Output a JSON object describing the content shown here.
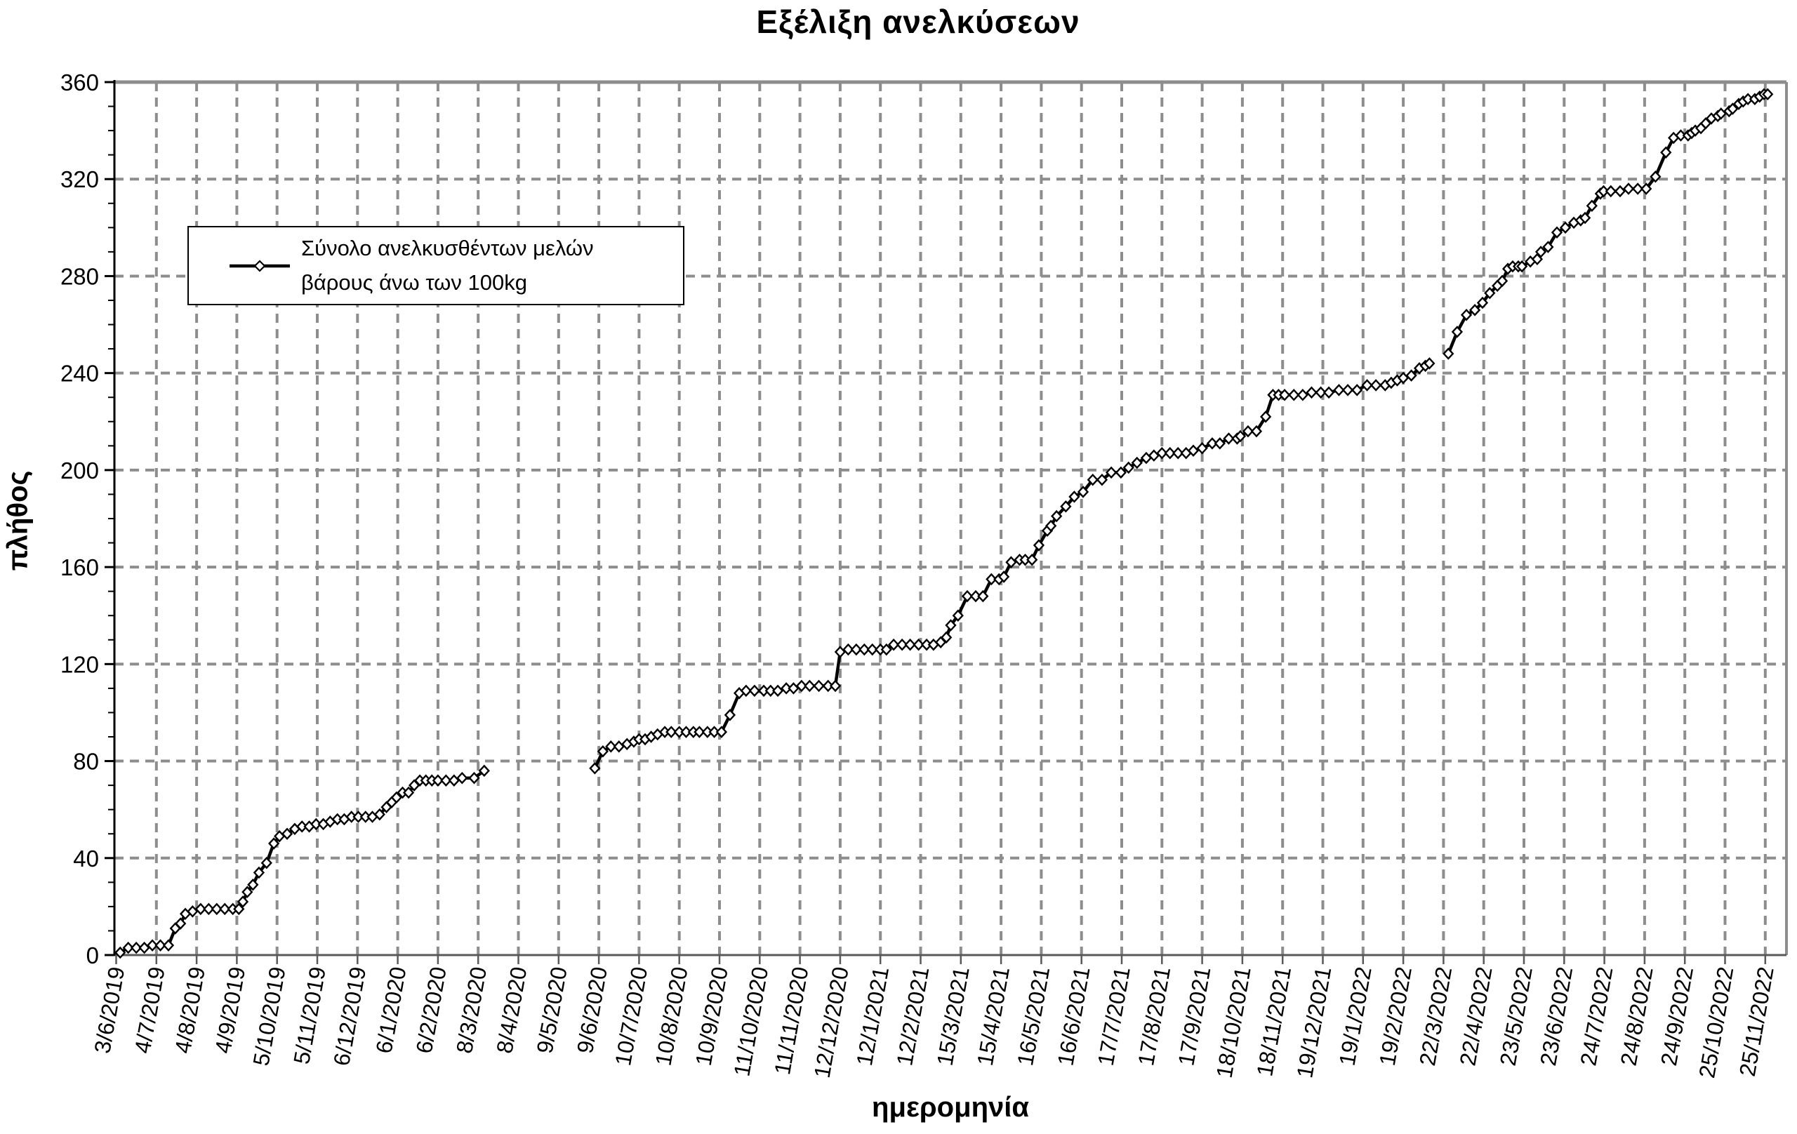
{
  "chart": {
    "title": "Εξέλιξη ανελκύσεων",
    "xlabel": "ημερομηνία",
    "ylabel": "πλήθος",
    "legend": {
      "line1": "Σύνολο ανελκυσθέντων μελών",
      "line2": "βάρους άνω των 100kg"
    }
  },
  "chart_data": {
    "type": "line",
    "title": "Εξέλιξη ανελκύσεων",
    "xlabel": "ημερομηνία",
    "ylabel": "πλήθος",
    "legend_entries": [
      "Σύνολο ανελκυσθέντων μελών βάρους άνω των 100kg"
    ],
    "ylim": [
      0,
      360
    ],
    "y_major_step": 40,
    "y_minor_step": 10,
    "y_tick_labels": [
      "0",
      "40",
      "80",
      "120",
      "160",
      "200",
      "240",
      "280",
      "320",
      "360"
    ],
    "grid": "dashed gray, both directions, on at every tick",
    "legend_position": "upper-left inside plot",
    "marker": "open-diamond",
    "colors": {
      "line": "#000000",
      "grid": "#8d8d8d",
      "axis": "#595959",
      "text": "#000000",
      "background": "#ffffff"
    },
    "x_unit": "fractional index into x_tick_labels (one tick per month)",
    "x_tick_labels": [
      "3/6/2019",
      "4/7/2019",
      "4/8/2019",
      "4/9/2019",
      "5/10/2019",
      "5/11/2019",
      "6/12/2019",
      "6/1/2020",
      "6/2/2020",
      "8/3/2020",
      "8/4/2020",
      "9/5/2020",
      "9/6/2020",
      "10/7/2020",
      "10/8/2020",
      "10/9/2020",
      "11/10/2020",
      "11/11/2020",
      "12/12/2020",
      "12/1/2021",
      "12/2/2021",
      "15/3/2021",
      "15/4/2021",
      "16/5/2021",
      "16/6/2021",
      "17/7/2021",
      "17/8/2021",
      "17/9/2021",
      "18/10/2021",
      "18/11/2021",
      "19/12/2021",
      "19/1/2022",
      "19/2/2022",
      "22/3/2022",
      "22/4/2022",
      "23/5/2022",
      "23/6/2022",
      "24/7/2022",
      "24/8/2022",
      "24/9/2022",
      "25/10/2022",
      "25/11/2022"
    ],
    "series": [
      {
        "name": "Σύνολο ανελκυσθέντων μελών βάρους άνω των 100kg",
        "segments": [
          [
            [
              0.1,
              1
            ],
            [
              0.3,
              3
            ],
            [
              0.5,
              3
            ],
            [
              0.7,
              3
            ],
            [
              0.9,
              4
            ],
            [
              1.1,
              4
            ],
            [
              1.3,
              4
            ],
            [
              1.47,
              11
            ],
            [
              1.6,
              13
            ],
            [
              1.72,
              17
            ],
            [
              1.9,
              18
            ],
            [
              2.1,
              19
            ],
            [
              2.3,
              19
            ],
            [
              2.5,
              19
            ],
            [
              2.7,
              19
            ],
            [
              2.9,
              19
            ],
            [
              3.05,
              19
            ],
            [
              3.15,
              22
            ],
            [
              3.26,
              26
            ],
            [
              3.4,
              29
            ],
            [
              3.55,
              34
            ],
            [
              3.74,
              38
            ],
            [
              3.92,
              46
            ],
            [
              4.06,
              49
            ],
            [
              4.25,
              50
            ],
            [
              4.44,
              52
            ],
            [
              4.62,
              53
            ],
            [
              4.8,
              53
            ],
            [
              4.97,
              54
            ],
            [
              5.15,
              54
            ],
            [
              5.32,
              55
            ],
            [
              5.5,
              56
            ],
            [
              5.67,
              56
            ],
            [
              5.85,
              57
            ],
            [
              6.02,
              57
            ],
            [
              6.2,
              57
            ],
            [
              6.37,
              57
            ],
            [
              6.55,
              58
            ],
            [
              6.72,
              61
            ],
            [
              6.85,
              63
            ],
            [
              6.97,
              65
            ],
            [
              7.12,
              67
            ],
            [
              7.27,
              67
            ],
            [
              7.41,
              70
            ],
            [
              7.55,
              72
            ],
            [
              7.7,
              72
            ],
            [
              7.85,
              72
            ],
            [
              8.0,
              72
            ],
            [
              8.2,
              72
            ],
            [
              8.4,
              72
            ],
            [
              8.6,
              73
            ],
            [
              8.9,
              73
            ],
            [
              9.15,
              76
            ]
          ],
          [
            [
              11.9,
              77
            ],
            [
              12.1,
              84
            ],
            [
              12.3,
              86
            ],
            [
              12.5,
              86
            ],
            [
              12.7,
              87
            ],
            [
              12.87,
              88
            ],
            [
              13.0,
              89
            ],
            [
              13.15,
              89
            ],
            [
              13.3,
              90
            ],
            [
              13.46,
              91
            ],
            [
              13.64,
              92
            ],
            [
              13.8,
              92
            ],
            [
              14.0,
              92
            ],
            [
              14.17,
              92
            ],
            [
              14.35,
              92
            ],
            [
              14.5,
              92
            ],
            [
              14.7,
              92
            ],
            [
              14.87,
              92
            ],
            [
              15.05,
              92
            ],
            [
              15.26,
              99
            ],
            [
              15.49,
              108
            ],
            [
              15.66,
              109
            ],
            [
              15.87,
              109
            ],
            [
              16.1,
              109
            ],
            [
              16.27,
              109
            ],
            [
              16.45,
              109
            ],
            [
              16.66,
              110
            ],
            [
              16.84,
              110
            ],
            [
              17.04,
              111
            ],
            [
              17.24,
              111
            ],
            [
              17.47,
              111
            ],
            [
              17.7,
              111
            ],
            [
              17.88,
              111
            ],
            [
              18.0,
              125
            ],
            [
              18.2,
              126
            ],
            [
              18.4,
              126
            ],
            [
              18.6,
              126
            ],
            [
              18.8,
              126
            ],
            [
              19.0,
              126
            ],
            [
              19.15,
              126
            ],
            [
              19.33,
              128
            ],
            [
              19.54,
              128
            ],
            [
              19.74,
              128
            ],
            [
              19.95,
              128
            ],
            [
              20.15,
              128
            ],
            [
              20.32,
              128
            ],
            [
              20.5,
              129
            ],
            [
              20.64,
              131
            ],
            [
              20.75,
              136
            ],
            [
              20.93,
              140
            ],
            [
              21.16,
              148
            ],
            [
              21.37,
              148
            ],
            [
              21.55,
              148
            ],
            [
              21.76,
              155
            ],
            [
              21.95,
              155
            ],
            [
              22.07,
              156
            ],
            [
              22.25,
              162
            ],
            [
              22.46,
              163
            ],
            [
              22.6,
              163
            ],
            [
              22.77,
              163
            ],
            [
              22.94,
              169
            ],
            [
              23.15,
              175
            ],
            [
              23.24,
              177
            ],
            [
              23.38,
              181
            ],
            [
              23.61,
              185
            ],
            [
              23.82,
              189
            ],
            [
              24.04,
              191
            ],
            [
              24.28,
              196
            ],
            [
              24.51,
              196
            ],
            [
              24.74,
              199
            ],
            [
              24.98,
              199
            ],
            [
              25.17,
              201
            ],
            [
              25.38,
              203
            ],
            [
              25.61,
              205
            ],
            [
              25.8,
              206
            ],
            [
              26.0,
              207
            ],
            [
              26.2,
              207
            ],
            [
              26.4,
              207
            ],
            [
              26.6,
              207
            ],
            [
              26.78,
              208
            ],
            [
              27.0,
              209
            ],
            [
              27.25,
              211
            ],
            [
              27.44,
              211
            ],
            [
              27.66,
              213
            ],
            [
              27.87,
              213
            ],
            [
              27.95,
              214
            ],
            [
              28.14,
              216
            ],
            [
              28.35,
              216
            ],
            [
              28.58,
              222
            ],
            [
              28.76,
              231
            ],
            [
              28.9,
              231
            ],
            [
              29.05,
              231
            ],
            [
              29.28,
              231
            ],
            [
              29.5,
              231
            ],
            [
              29.72,
              232
            ],
            [
              29.95,
              232
            ],
            [
              30.15,
              232
            ],
            [
              30.4,
              233
            ],
            [
              30.62,
              233
            ],
            [
              30.85,
              233
            ],
            [
              31.1,
              235
            ],
            [
              31.32,
              235
            ],
            [
              31.55,
              235
            ],
            [
              31.7,
              236
            ],
            [
              31.85,
              237
            ],
            [
              32.0,
              238
            ],
            [
              32.2,
              239
            ],
            [
              32.4,
              242
            ],
            [
              32.55,
              243
            ],
            [
              32.65,
              244
            ]
          ],
          [
            [
              33.12,
              248
            ],
            [
              33.34,
              257
            ],
            [
              33.57,
              264
            ],
            [
              33.78,
              266
            ],
            [
              33.97,
              269
            ],
            [
              34.15,
              273
            ],
            [
              34.34,
              276
            ],
            [
              34.46,
              278
            ],
            [
              34.6,
              283
            ],
            [
              34.72,
              284
            ],
            [
              34.86,
              284
            ],
            [
              34.95,
              284
            ],
            [
              35.16,
              286
            ],
            [
              35.33,
              287
            ],
            [
              35.42,
              290
            ],
            [
              35.6,
              292
            ],
            [
              35.82,
              298
            ],
            [
              36.03,
              300
            ],
            [
              36.24,
              302
            ],
            [
              36.41,
              303
            ],
            [
              36.52,
              304
            ],
            [
              36.69,
              309
            ],
            [
              36.9,
              314
            ],
            [
              36.98,
              315
            ],
            [
              37.16,
              315
            ],
            [
              37.39,
              315
            ],
            [
              37.6,
              316
            ],
            [
              37.83,
              316
            ],
            [
              38.04,
              316
            ],
            [
              38.27,
              321
            ],
            [
              38.53,
              331
            ],
            [
              38.72,
              337
            ],
            [
              38.9,
              338
            ],
            [
              39.08,
              338
            ],
            [
              39.17,
              339
            ],
            [
              39.26,
              340
            ],
            [
              39.4,
              341
            ],
            [
              39.52,
              343
            ],
            [
              39.66,
              345
            ],
            [
              39.82,
              346
            ],
            [
              39.9,
              347
            ],
            [
              40.1,
              348
            ],
            [
              40.19,
              349
            ],
            [
              40.34,
              351
            ],
            [
              40.45,
              352
            ],
            [
              40.57,
              353
            ],
            [
              40.74,
              353
            ],
            [
              40.86,
              354
            ],
            [
              40.97,
              355
            ],
            [
              41.06,
              355
            ]
          ]
        ]
      }
    ]
  }
}
